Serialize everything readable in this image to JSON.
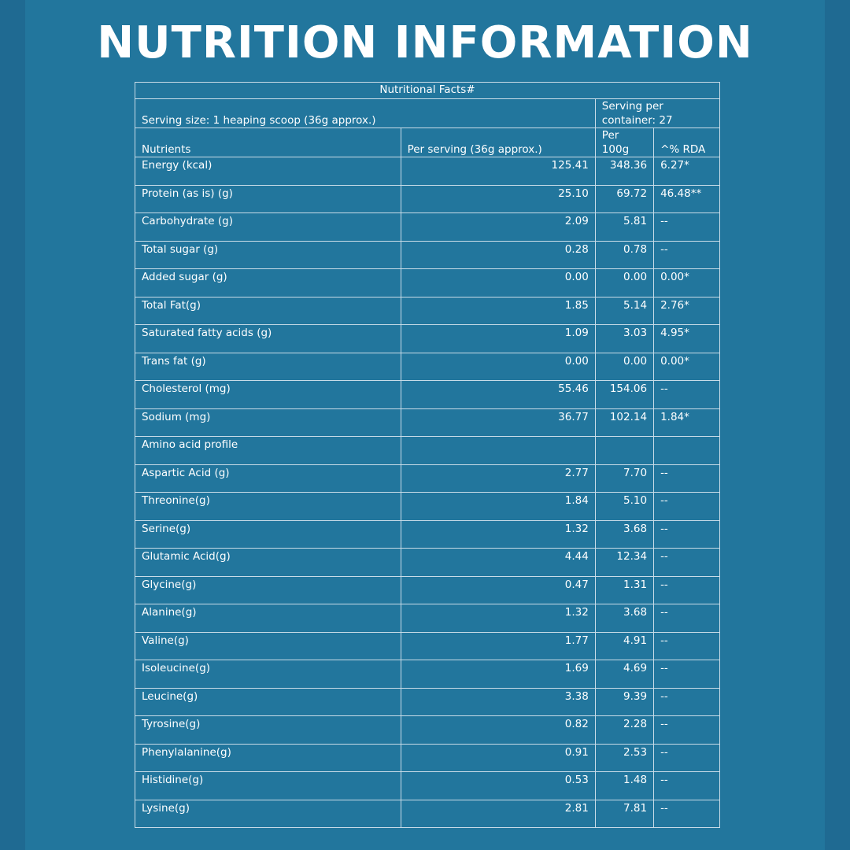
{
  "title": "NUTRITION INFORMATION",
  "table": {
    "caption": "Nutritional Facts#",
    "serving_size": "Serving size: 1 heaping scoop (36g approx.)",
    "serving_per_container": "Serving per container: 27",
    "headers": [
      "Nutrients",
      "Per serving (36g approx.)",
      "Per 100g",
      "^% RDA"
    ],
    "rows": [
      [
        "Energy (kcal)",
        "125.41",
        "348.36",
        "6.27*"
      ],
      [
        "Protein (as is) (g)",
        "25.10",
        "69.72",
        "46.48**"
      ],
      [
        "Carbohydrate (g)",
        "2.09",
        "5.81",
        "--"
      ],
      [
        "Total sugar (g)",
        "0.28",
        "0.78",
        "--"
      ],
      [
        "Added sugar (g)",
        "0.00",
        "0.00",
        "0.00*"
      ],
      [
        "Total Fat(g)",
        "1.85",
        "5.14",
        "2.76*"
      ],
      [
        "Saturated fatty acids (g)",
        "1.09",
        "3.03",
        "4.95*"
      ],
      [
        "Trans fat (g)",
        "0.00",
        "0.00",
        "0.00*"
      ],
      [
        "Cholesterol (mg)",
        "55.46",
        "154.06",
        "--"
      ],
      [
        "Sodium (mg)",
        "36.77",
        "102.14",
        "1.84*"
      ],
      [
        "Amino acid profile",
        "",
        "",
        ""
      ],
      [
        "Aspartic Acid (g)",
        "2.77",
        "7.70",
        "--"
      ],
      [
        "Threonine(g)",
        "1.84",
        "5.10",
        "--"
      ],
      [
        "Serine(g)",
        "1.32",
        "3.68",
        "--"
      ],
      [
        "Glutamic Acid(g)",
        "4.44",
        "12.34",
        "--"
      ],
      [
        "Glycine(g)",
        "0.47",
        "1.31",
        "--"
      ],
      [
        "Alanine(g)",
        "1.32",
        "3.68",
        "--"
      ],
      [
        "Valine(g)",
        "1.77",
        "4.91",
        "--"
      ],
      [
        "Isoleucine(g)",
        "1.69",
        "4.69",
        "--"
      ],
      [
        "Leucine(g)",
        "3.38",
        "9.39",
        "--"
      ],
      [
        "Tyrosine(g)",
        "0.82",
        "2.28",
        "--"
      ],
      [
        "Phenylalanine(g)",
        "0.91",
        "2.53",
        "--"
      ],
      [
        "Histidine(g)",
        "0.53",
        "1.48",
        "--"
      ],
      [
        "Lysine(g)",
        "2.81",
        "7.81",
        "--"
      ]
    ]
  }
}
